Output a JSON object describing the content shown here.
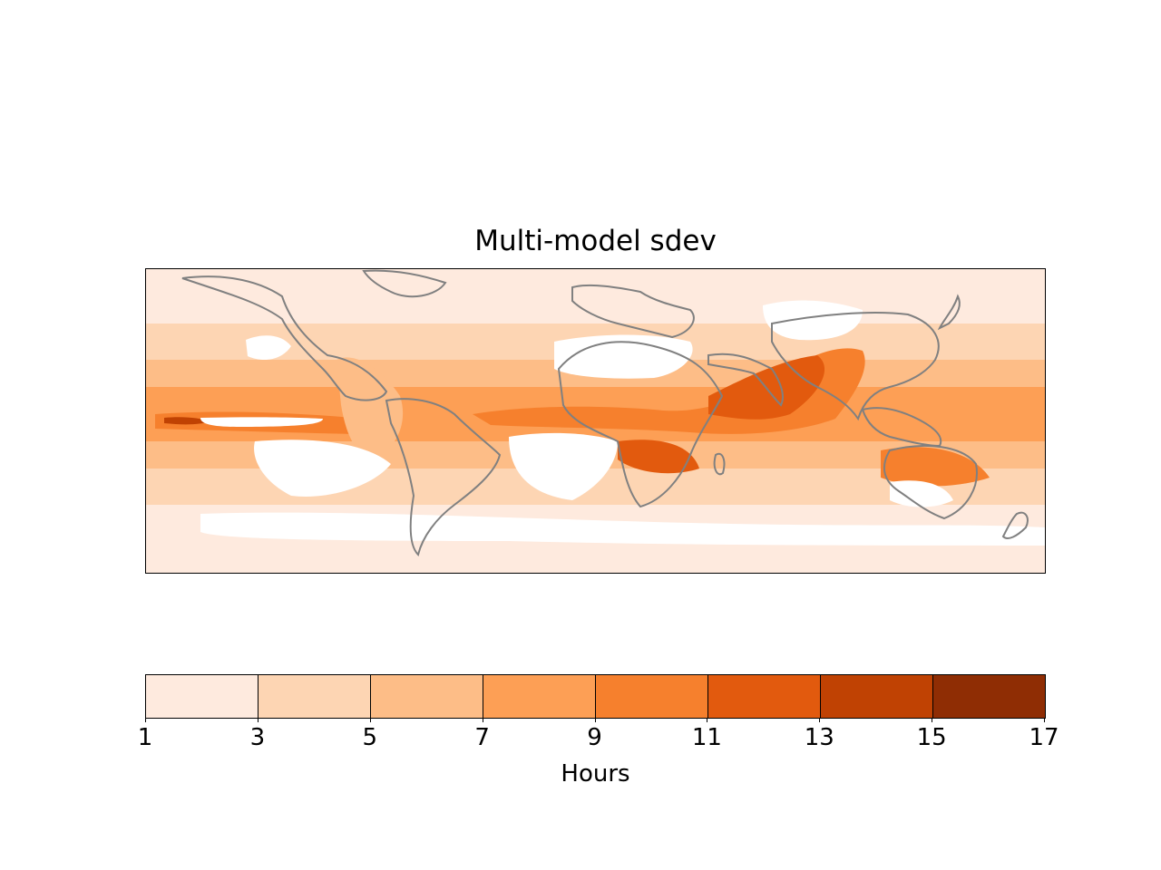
{
  "title": "Multi-model sdev",
  "colorbar": {
    "label": "Hours",
    "ticks": [
      "1",
      "3",
      "5",
      "7",
      "9",
      "11",
      "13",
      "15",
      "17"
    ],
    "levels": [
      1,
      3,
      5,
      7,
      9,
      11,
      13,
      15,
      17
    ],
    "colors": [
      "#feeade",
      "#fdd5b3",
      "#fdbd87",
      "#fd9f55",
      "#f6802d",
      "#e25a0e",
      "#c04203",
      "#8f2d04"
    ]
  },
  "colors": {
    "coastline": "#808080",
    "land_no_data": "#ffffff"
  }
}
